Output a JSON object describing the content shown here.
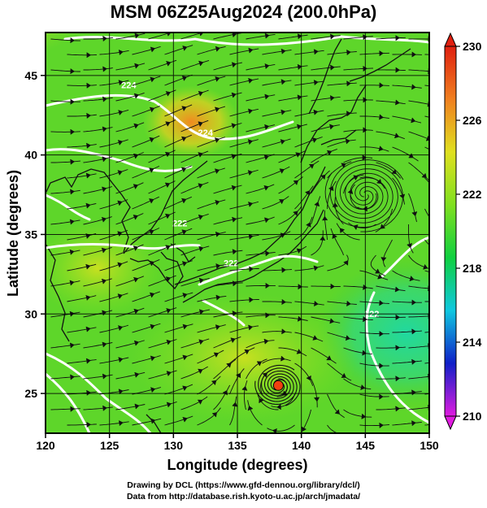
{
  "title": "MSM 06Z25Aug2024 (200.0hPa)",
  "x_axis": {
    "label": "Longitude (degrees)",
    "ticks": [
      "120",
      "125",
      "130",
      "135",
      "140",
      "145",
      "150"
    ],
    "range": [
      120,
      150
    ]
  },
  "y_axis": {
    "label": "Latitude  (degrees)",
    "ticks": [
      "25",
      "30",
      "35",
      "40",
      "45"
    ],
    "range": [
      22.5,
      47.7
    ]
  },
  "colorbar": {
    "ticks": [
      "210",
      "214",
      "218",
      "222",
      "226",
      "230"
    ],
    "range": [
      210,
      230
    ],
    "colors": [
      "#e01ce0",
      "#1020c8",
      "#10c8e0",
      "#10d040",
      "#80e020",
      "#e0e020",
      "#f08020",
      "#e02010"
    ]
  },
  "contour_labels": [
    {
      "text": "224",
      "lon": 126.5,
      "lat": 44.2
    },
    {
      "text": "224",
      "lon": 132.5,
      "lat": 41.2
    },
    {
      "text": "222",
      "lon": 130.5,
      "lat": 35.5
    },
    {
      "text": "222",
      "lon": 134.5,
      "lat": 33.0
    },
    {
      "text": "222",
      "lon": 145.5,
      "lat": 29.8
    }
  ],
  "features": {
    "vortex_north": {
      "lon": 145.0,
      "lat": 37.5
    },
    "vortex_south": {
      "lon": 138.2,
      "lat": 25.5
    }
  },
  "footer": {
    "line1": "Drawing by DCL (https://www.gfd-dennou.org/library/dcl/)",
    "line2": "Data from http://database.rish.kyoto-u.ac.jp/arch/jmadata/"
  }
}
